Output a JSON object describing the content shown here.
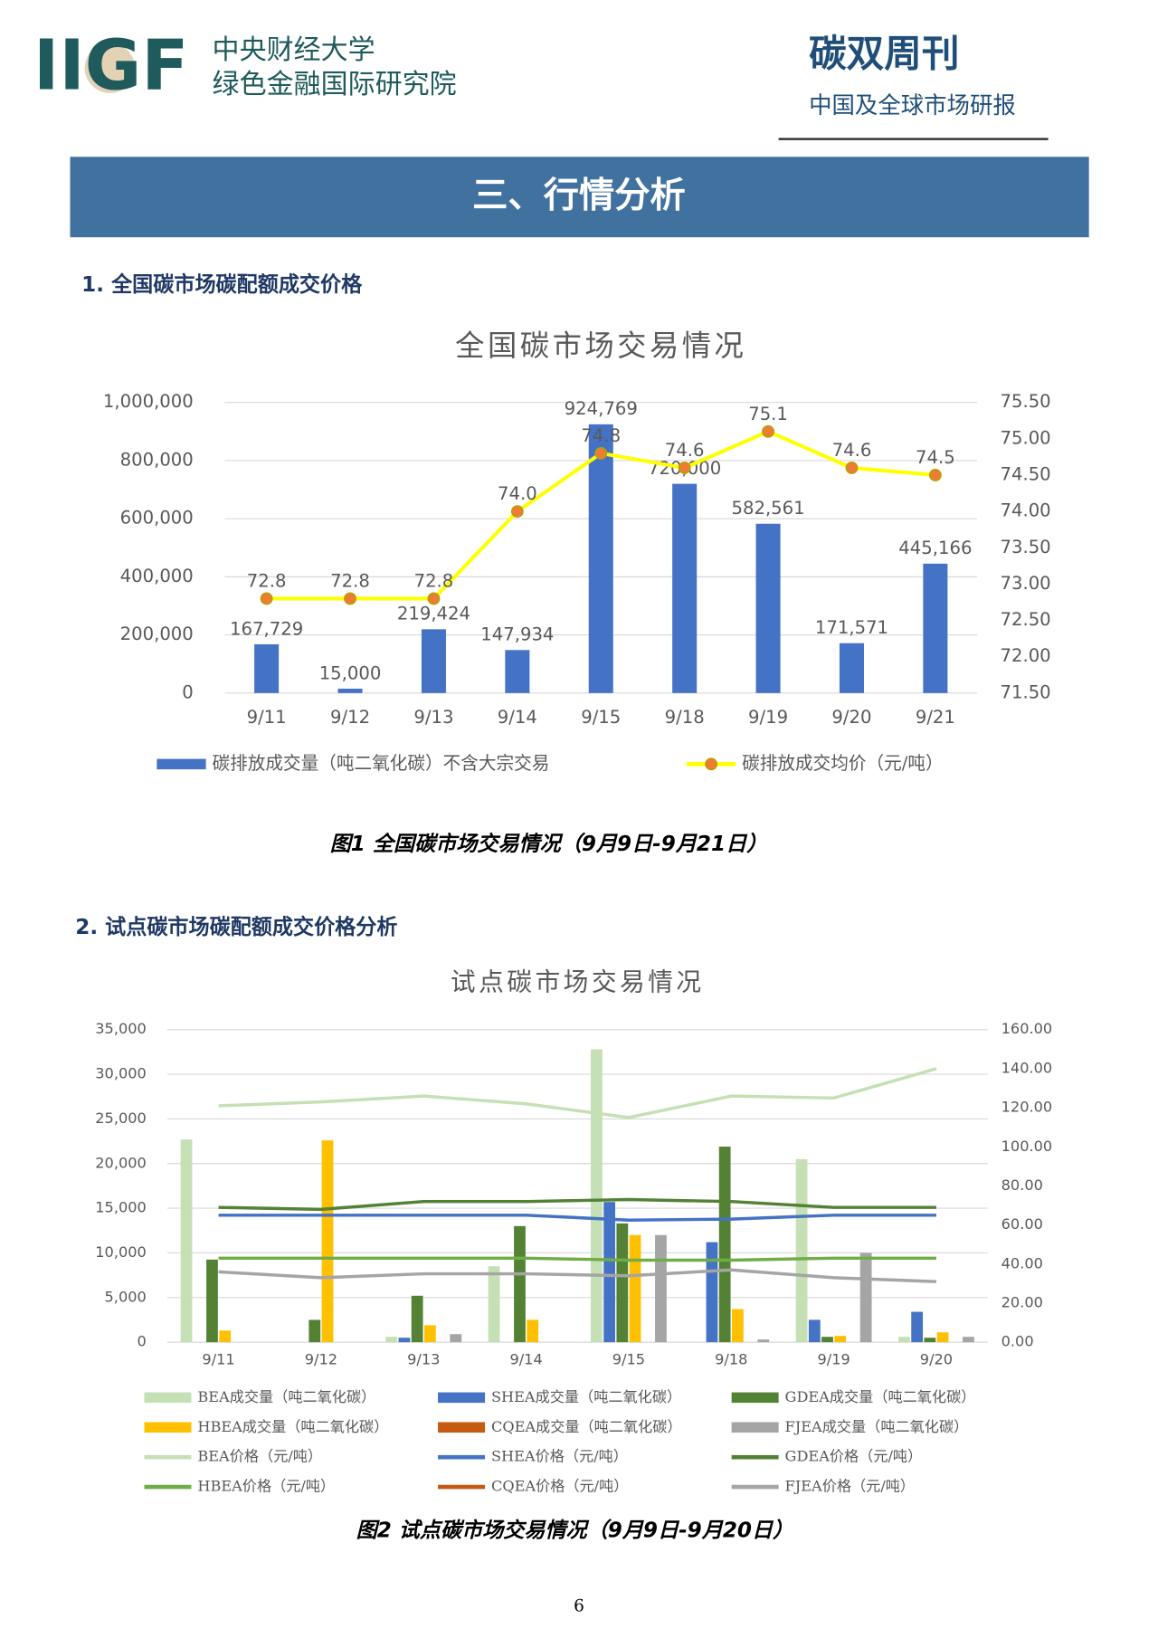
{
  "header": {
    "logo": "IIGF",
    "org_lines": [
      "中央财经大学",
      "绿色金融国际研究院"
    ],
    "pub_title": "碳双周刊",
    "pub_subtitle": "中国及全球市场研报"
  },
  "section_title": "三、行情分析",
  "headings": [
    "1. 全国碳市场碳配额成交价格",
    "2. 试点碳市场碳配额成交价格分析"
  ],
  "captions": [
    "图1 全国碳市场交易情况（9月9日-9月21日）",
    "图2 试点碳市场交易情况（9月9日-9月20日）"
  ],
  "page_number": "6",
  "chart_data": [
    {
      "type": "combo",
      "title": "全国碳市场交易情况",
      "grid": true,
      "categories": [
        "9/11",
        "9/12",
        "9/13",
        "9/14",
        "9/15",
        "9/18",
        "9/19",
        "9/20",
        "9/21"
      ],
      "series": [
        {
          "name": "碳排放成交量（吨二氧化碳）不含大宗交易",
          "type": "bar",
          "color": "#4472c4",
          "values": [
            167729,
            15000,
            219424,
            147934,
            924769,
            720000,
            582561,
            171571,
            445166
          ],
          "value_labels": [
            "167,729",
            "15,000",
            "219,424",
            "147,934",
            "924,769",
            "720,000",
            "582,561",
            "171,571",
            "445,166"
          ]
        },
        {
          "name": "碳排放成交均价（元/吨）",
          "type": "line",
          "axis": "y2",
          "color": "#ffff00",
          "marker": "#ed7d31",
          "values": [
            72.8,
            72.8,
            72.8,
            74.0,
            74.8,
            74.6,
            75.1,
            74.6,
            74.5
          ],
          "value_labels": [
            "72.8",
            "72.8",
            "72.8",
            "74.0",
            "74.8",
            "74.6",
            "75.1",
            "74.6",
            "74.5"
          ]
        }
      ],
      "ylim": [
        0,
        1000000
      ],
      "yticks": [
        0,
        {
          "value": 200000,
          "label": "200,000"
        },
        {
          "value": 400000,
          "label": "400,000"
        },
        {
          "value": 600000,
          "label": "600,000"
        },
        {
          "value": 800000,
          "label": "800,000"
        },
        {
          "value": 1000000,
          "label": "1,000,000"
        }
      ],
      "y2lim": [
        71.5,
        75.5
      ],
      "y2ticks": [
        {
          "value": 71.5,
          "label": "71.50"
        },
        {
          "value": 72,
          "label": "72.00"
        },
        {
          "value": 72.5,
          "label": "72.50"
        },
        {
          "value": 73,
          "label": "73.00"
        },
        {
          "value": 73.5,
          "label": "73.50"
        },
        {
          "value": 74,
          "label": "74.00"
        },
        {
          "value": 74.5,
          "label": "74.50"
        },
        {
          "value": 75,
          "label": "75.00"
        },
        {
          "value": 75.5,
          "label": "75.50"
        }
      ]
    },
    {
      "type": "combo",
      "title": "试点碳市场交易情况",
      "grid": true,
      "categories": [
        "9/11",
        "9/12",
        "9/13",
        "9/14",
        "9/15",
        "9/18",
        "9/19",
        "9/20"
      ],
      "series": [
        {
          "name": "BEA成交量（吨二氧化碳）",
          "type": "bar",
          "color": "#c5e0b4",
          "values": [
            22700,
            0,
            600,
            8500,
            32800,
            0,
            20500,
            600
          ]
        },
        {
          "name": "SHEA成交量（吨二氧化碳）",
          "type": "bar",
          "color": "#4472c4",
          "values": [
            0,
            0,
            500,
            0,
            15700,
            11200,
            2500,
            3400
          ]
        },
        {
          "name": "GDEA成交量（吨二氧化碳）",
          "type": "bar",
          "color": "#548235",
          "values": [
            9250,
            2500,
            5200,
            13000,
            13300,
            21900,
            600,
            500
          ]
        },
        {
          "name": "HBEA成交量（吨二氧化碳）",
          "type": "bar",
          "color": "#ffc000",
          "values": [
            1300,
            22600,
            1900,
            2500,
            12000,
            3700,
            700,
            1100
          ]
        },
        {
          "name": "CQEA成交量（吨二氧化碳）",
          "type": "bar",
          "color": "#c55a11",
          "values": [
            0,
            0,
            0,
            0,
            0,
            0,
            0,
            0
          ]
        },
        {
          "name": "FJEA成交量（吨二氧化碳）",
          "type": "bar",
          "color": "#a5a5a5",
          "values": [
            0,
            0,
            900,
            0,
            12000,
            300,
            10000,
            600
          ]
        },
        {
          "name": "BEA价格（元/吨）",
          "type": "line",
          "axis": "y2",
          "color": "#c5e0b4",
          "values": [
            121,
            123,
            126,
            122,
            115,
            126,
            125,
            140
          ]
        },
        {
          "name": "SHEA价格（元/吨）",
          "type": "line",
          "axis": "y2",
          "color": "#4472c4",
          "values": [
            65,
            65,
            65,
            65,
            62.5,
            63,
            65,
            65
          ]
        },
        {
          "name": "GDEA价格（元/吨）",
          "type": "line",
          "axis": "y2",
          "color": "#548235",
          "values": [
            69,
            68,
            72,
            72,
            73,
            72,
            69,
            69
          ]
        },
        {
          "name": "HBEA价格（元/吨）",
          "type": "line",
          "axis": "y2",
          "color": "#70ad47",
          "values": [
            43,
            43,
            43,
            43,
            42,
            42,
            43,
            43
          ]
        },
        {
          "name": "CQEA价格（元/吨）",
          "type": "line",
          "axis": "y2",
          "color": "#c55a11",
          "values": [
            null,
            null,
            null,
            null,
            null,
            null,
            null,
            null
          ]
        },
        {
          "name": "FJEA价格（元/吨）",
          "type": "line",
          "axis": "y2",
          "color": "#a5a5a5",
          "values": [
            36,
            33,
            35,
            35,
            34,
            37,
            33,
            31
          ]
        }
      ],
      "ylim": [
        0,
        35000
      ],
      "yticks": [
        0,
        {
          "value": 5000,
          "label": "5,000"
        },
        {
          "value": 10000,
          "label": "10,000"
        },
        {
          "value": 15000,
          "label": "15,000"
        },
        {
          "value": 20000,
          "label": "20,000"
        },
        {
          "value": 25000,
          "label": "25,000"
        },
        {
          "value": 30000,
          "label": "30,000"
        },
        {
          "value": 35000,
          "label": "35,000"
        }
      ],
      "y2lim": [
        0,
        160
      ],
      "y2ticks": [
        {
          "value": 0,
          "label": "0.00"
        },
        {
          "value": 20,
          "label": "20.00"
        },
        {
          "value": 40,
          "label": "40.00"
        },
        {
          "value": 60,
          "label": "60.00"
        },
        {
          "value": 80,
          "label": "80.00"
        },
        {
          "value": 100,
          "label": "100.00"
        },
        {
          "value": 120,
          "label": "120.00"
        },
        {
          "value": 140,
          "label": "140.00"
        },
        {
          "value": 160,
          "label": "160.00"
        }
      ]
    }
  ]
}
